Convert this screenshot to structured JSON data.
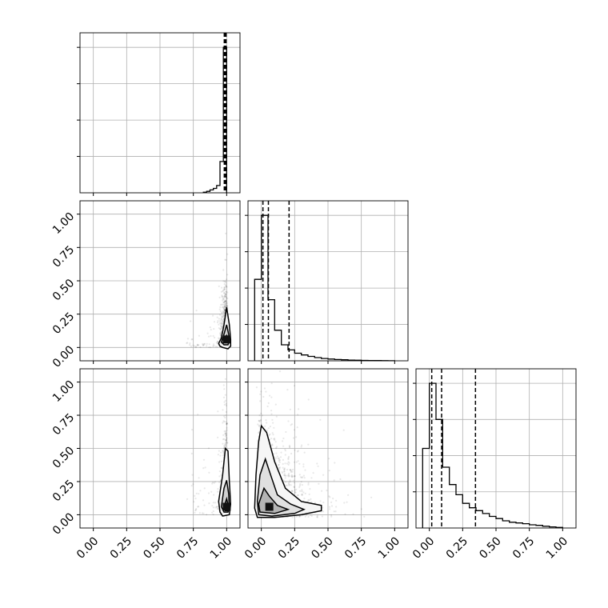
{
  "chart_data": [
    {
      "type": "histogram",
      "panel": "p0",
      "bins": [
        0.825,
        0.85,
        0.875,
        0.9,
        0.925,
        0.95,
        0.975,
        1.0
      ],
      "counts": [
        0.004,
        0.01,
        0.02,
        0.03,
        0.05,
        0.215,
        1.0
      ],
      "quantile_lines": [
        0.982,
        0.988,
        0.996
      ],
      "xlim": [
        -0.1,
        1.1
      ],
      "ylim": [
        0,
        1.1
      ],
      "grid": true
    },
    {
      "type": "histogram",
      "panel": "p11",
      "bins": [
        -0.05,
        0.0,
        0.05,
        0.1,
        0.15,
        0.2,
        0.25,
        0.3,
        0.35,
        0.4,
        0.45,
        0.5,
        0.55,
        0.6,
        0.65,
        0.7,
        0.75,
        0.8,
        0.85,
        0.9,
        0.95,
        1.0
      ],
      "counts": [
        0.56,
        1.0,
        0.42,
        0.21,
        0.11,
        0.075,
        0.052,
        0.04,
        0.03,
        0.022,
        0.016,
        0.012,
        0.009,
        0.007,
        0.005,
        0.004,
        0.003,
        0.002,
        0.0015,
        0.001,
        0.0005
      ],
      "quantile_lines": [
        0.012,
        0.053,
        0.208
      ],
      "xlim": [
        -0.1,
        1.1
      ],
      "ylim": [
        0,
        1.1
      ],
      "grid": true
    },
    {
      "type": "histogram",
      "panel": "p22",
      "bins": [
        -0.05,
        0.0,
        0.05,
        0.1,
        0.15,
        0.2,
        0.25,
        0.3,
        0.35,
        0.4,
        0.45,
        0.5,
        0.55,
        0.6,
        0.65,
        0.7,
        0.75,
        0.8,
        0.85,
        0.9,
        0.95,
        1.0
      ],
      "counts": [
        0.55,
        1.0,
        0.75,
        0.42,
        0.3,
        0.23,
        0.17,
        0.14,
        0.12,
        0.1,
        0.08,
        0.065,
        0.05,
        0.04,
        0.035,
        0.03,
        0.022,
        0.018,
        0.012,
        0.008,
        0.004
      ],
      "quantile_lines": [
        0.018,
        0.092,
        0.346
      ],
      "xlim": [
        -0.1,
        1.1
      ],
      "ylim": [
        0,
        1.1
      ],
      "grid": true
    },
    {
      "type": "scatter",
      "panel": "p10",
      "x_center": 1.0,
      "y_center": 0.06,
      "xlim": [
        -0.1,
        1.1
      ],
      "ylim": [
        -0.1,
        1.1
      ],
      "grid": true,
      "mode_xy": [
        1.0,
        0.06
      ]
    },
    {
      "type": "scatter",
      "panel": "p20",
      "x_center": 1.0,
      "y_center": 0.06,
      "xlim": [
        -0.1,
        1.1
      ],
      "ylim": [
        -0.1,
        1.1
      ],
      "grid": true,
      "mode_xy": [
        1.0,
        0.06
      ]
    },
    {
      "type": "scatter",
      "panel": "p21",
      "x_center": 0.06,
      "y_center": 0.06,
      "xlim": [
        -0.1,
        1.1
      ],
      "ylim": [
        -0.1,
        1.1
      ],
      "grid": true,
      "mode_xy": [
        0.06,
        0.06
      ]
    }
  ],
  "tick_labels": [
    "0.00",
    "0.25",
    "0.50",
    "0.75",
    "1.00"
  ],
  "tick_values": [
    0,
    0.25,
    0.5,
    0.75,
    1.0
  ]
}
